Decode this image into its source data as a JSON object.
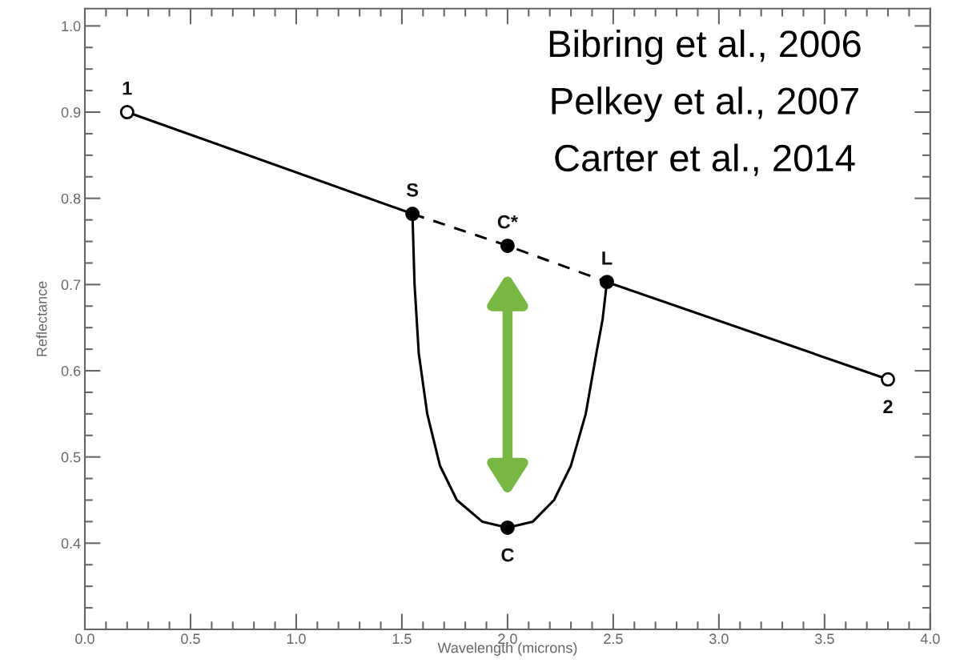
{
  "chart_data": {
    "type": "line",
    "xlabel": "Wavelength (microns)",
    "ylabel": "Reflectance",
    "xlim": [
      0.0,
      4.0
    ],
    "ylim": [
      0.3,
      1.02
    ],
    "xticks": [
      {
        "value": 0.0,
        "label": "0.0"
      },
      0.5,
      {
        "value": 1.0,
        "label": "1.0"
      },
      1.5,
      {
        "value": 2.0,
        "label": "2.0"
      },
      2.5,
      {
        "value": 3.0,
        "label": "3.0"
      },
      3.5,
      {
        "value": 4.0,
        "label": "4.0"
      }
    ],
    "yticks": [
      0.4,
      0.5,
      0.6,
      0.7,
      0.8,
      0.9,
      {
        "value": 1.0,
        "label": "1.0"
      }
    ],
    "grid": false,
    "legend": false,
    "series": [
      {
        "color": "#000000",
        "line_style": "solid",
        "x": [
          0.2,
          1.55
        ],
        "values": [
          0.9,
          0.782
        ]
      },
      {
        "color": "#000000",
        "line_style": "dashed",
        "x": [
          1.55,
          2.0,
          2.47
        ],
        "values": [
          0.782,
          0.745,
          0.703
        ]
      },
      {
        "color": "#000000",
        "line_style": "solid",
        "x": [
          2.47,
          3.8
        ],
        "values": [
          0.703,
          0.59
        ]
      },
      {
        "color": "#000000",
        "line_style": "solid",
        "x": [
          1.55,
          1.56,
          1.58,
          1.62,
          1.68,
          1.76,
          1.88,
          2.0,
          2.12,
          2.22,
          2.3,
          2.37,
          2.42,
          2.45,
          2.47
        ],
        "values": [
          0.782,
          0.7,
          0.62,
          0.55,
          0.49,
          0.45,
          0.425,
          0.418,
          0.425,
          0.45,
          0.49,
          0.55,
          0.62,
          0.66,
          0.703
        ]
      },
      {
        "type": "scatter",
        "marker": "circle",
        "color": "#ffffff",
        "x": [
          0.2,
          3.8
        ],
        "values": [
          0.9,
          0.59
        ]
      },
      {
        "type": "scatter",
        "marker": "circle",
        "color": "#000000",
        "x": [
          1.55,
          2.0,
          2.47,
          2.0
        ],
        "values": [
          0.782,
          0.745,
          0.703,
          0.418
        ]
      }
    ],
    "annotations": [
      {
        "text": "1",
        "x": 0.2,
        "y": 0.9
      },
      {
        "text": "S",
        "x": 1.55,
        "y": 0.782
      },
      {
        "text": "C*",
        "x": 2.0,
        "y": 0.745
      },
      {
        "text": "L",
        "x": 2.47,
        "y": 0.703
      },
      {
        "text": "2",
        "x": 3.8,
        "y": 0.59
      },
      {
        "text": "C",
        "x": 2.0,
        "y": 0.418
      },
      "Bibring et al., 2006",
      "Pelkey et al., 2007",
      "Carter et al., 2014"
    ]
  }
}
